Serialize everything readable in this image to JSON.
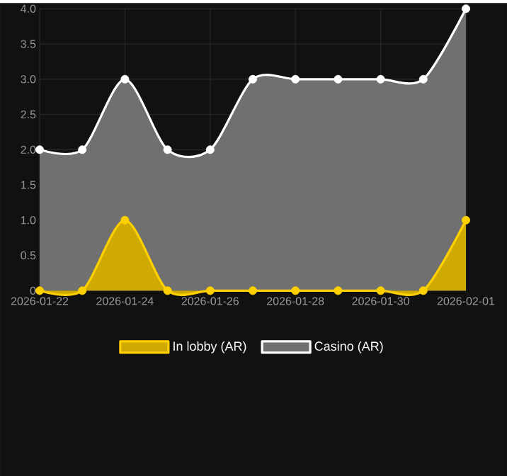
{
  "chart_data": {
    "type": "area",
    "x": [
      "2026-01-22",
      "2026-01-23",
      "2026-01-24",
      "2026-01-25",
      "2026-01-26",
      "2026-01-27",
      "2026-01-28",
      "2026-01-29",
      "2026-01-30",
      "2026-01-31",
      "2026-02-01"
    ],
    "series": [
      {
        "name": "In lobby (AR)",
        "color": "#ffd000",
        "values": [
          0,
          0,
          1,
          0,
          0,
          0,
          0,
          0,
          0,
          0,
          1
        ]
      },
      {
        "name": "Casino (AR)",
        "color": "#ffffff",
        "values": [
          2,
          2,
          3,
          2,
          2,
          3,
          3,
          3,
          3,
          3,
          4
        ]
      }
    ],
    "xlim": [
      "2026-01-22",
      "2026-02-01"
    ],
    "xticks": [
      "2026-01-22",
      "2026-01-24",
      "2026-01-26",
      "2026-01-28",
      "2026-01-30",
      "2026-02-01"
    ],
    "ylim": [
      0,
      4
    ],
    "yticks": [
      0,
      0.5,
      {
        "value": 1,
        "label": "1.0"
      },
      1.5,
      {
        "value": 2,
        "label": "2.0"
      },
      2.5,
      {
        "value": 3,
        "label": "3.0"
      },
      3.5,
      {
        "value": 4,
        "label": "4.0"
      }
    ],
    "grid": true,
    "legend": "bottom",
    "marker": "circle",
    "line_style": "solid"
  }
}
